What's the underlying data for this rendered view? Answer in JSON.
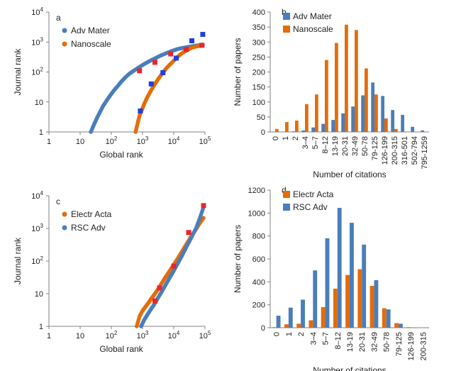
{
  "colors": {
    "blue": "#4a7ebb",
    "orange": "#e46c0a",
    "marker": "#e8262e",
    "marker_blue": "#1f3fe0"
  },
  "chart_data": [
    {
      "panel": "a",
      "type": "scatter",
      "xscale": "log",
      "yscale": "log",
      "xlim": [
        1,
        100000
      ],
      "ylim": [
        1,
        10000
      ],
      "xlabel": "Global rank",
      "ylabel": "Journal rank",
      "xticks": [
        "1",
        "10",
        "10^2",
        "10^3",
        "10^4",
        "10^5"
      ],
      "yticks": [
        "1",
        "10",
        "10^2",
        "10^3",
        "10^4"
      ],
      "legend": "top-left",
      "series": [
        {
          "name": "Adv Mater",
          "color": "#4a7ebb",
          "x": [
            22,
            28,
            35,
            45,
            55,
            70,
            90,
            120,
            160,
            210,
            280,
            380,
            520,
            700,
            950,
            1300,
            1800,
            2500,
            3500,
            5000,
            7000,
            10000,
            14000,
            20000,
            30000,
            45000,
            65000,
            85000
          ],
          "y": [
            1,
            1.8,
            3,
            5,
            7.5,
            11,
            16,
            24,
            34,
            48,
            66,
            88,
            110,
            135,
            165,
            200,
            240,
            285,
            340,
            400,
            460,
            530,
            590,
            640,
            690,
            740,
            780,
            800
          ]
        },
        {
          "name": "Nanoscale",
          "color": "#e46c0a",
          "x": [
            600,
            700,
            800,
            950,
            1150,
            1450,
            1900,
            2500,
            3300,
            4500,
            6000,
            8500,
            12000,
            17000,
            25000,
            38000,
            55000,
            80000
          ],
          "y": [
            1,
            2,
            3.5,
            5.5,
            9,
            15,
            25,
            40,
            62,
            95,
            140,
            200,
            290,
            400,
            520,
            650,
            720,
            760
          ]
        }
      ],
      "markers": [
        {
          "color": "#e8262e",
          "x": [
            800,
            2500,
            8000,
            25000,
            80000
          ],
          "y": [
            110,
            210,
            400,
            560,
            780
          ]
        },
        {
          "color": "#1f3fe0",
          "x": [
            850,
            1900,
            4500,
            12000,
            38000,
            85000
          ],
          "y": [
            5,
            40,
            95,
            290,
            1100,
            1800
          ]
        }
      ]
    },
    {
      "panel": "b",
      "type": "bar",
      "categories": [
        "0",
        "1",
        "2",
        "3–4",
        "5–7",
        "8–12",
        "13-19",
        "20-31",
        "32-49",
        "50-78",
        "79-125",
        "126-199",
        "200-315",
        "316-501",
        "502-794",
        "795-1259"
      ],
      "xlabel": "Number of citations",
      "ylabel": "Number of papers",
      "ylim": [
        0,
        400
      ],
      "yticks": [
        "0",
        "50",
        "100",
        "150",
        "200",
        "250",
        "300",
        "350",
        "400"
      ],
      "legend": "top-left",
      "series": [
        {
          "name": "Adv Mater",
          "color": "#4a7ebb",
          "values": [
            1,
            1,
            2,
            5,
            15,
            27,
            40,
            62,
            85,
            122,
            165,
            120,
            73,
            57,
            17,
            5
          ]
        },
        {
          "name": "Nanoscale",
          "color": "#e46c0a",
          "values": [
            10,
            33,
            38,
            93,
            125,
            240,
            297,
            358,
            340,
            212,
            125,
            45,
            10,
            1,
            0,
            0
          ]
        }
      ]
    },
    {
      "panel": "c",
      "type": "scatter",
      "xscale": "log",
      "yscale": "log",
      "xlim": [
        1,
        100000
      ],
      "ylim": [
        1,
        10000
      ],
      "xlabel": "Global rank",
      "ylabel": "Journal rank",
      "xticks": [
        "1",
        "10",
        "10^2",
        "10^3",
        "10^4",
        "10^5"
      ],
      "yticks": [
        "1",
        "10",
        "10^2",
        "10^3",
        "10^4"
      ],
      "legend": "top-left",
      "series": [
        {
          "name": "Electr Acta",
          "color": "#e46c0a",
          "x": [
            650,
            800,
            1000,
            1250,
            1600,
            2000,
            2500,
            3200,
            4000,
            5200,
            7000,
            9500,
            13000,
            18000,
            25000,
            35000,
            50000,
            70000,
            90000
          ],
          "y": [
            1,
            2,
            3,
            4,
            5.5,
            7.5,
            10,
            14,
            20,
            30,
            46,
            72,
            115,
            190,
            320,
            540,
            900,
            1500,
            2100
          ]
        },
        {
          "name": "RSC Adv",
          "color": "#4a7ebb",
          "x": [
            900,
            1100,
            1400,
            1800,
            2300,
            3000,
            4000,
            5200,
            7000,
            9500,
            13000,
            18000,
            25000,
            35000,
            50000,
            70000,
            90000
          ],
          "y": [
            1,
            1.5,
            2.2,
            3.2,
            4.5,
            7,
            11,
            17,
            28,
            46,
            80,
            140,
            260,
            480,
            950,
            2200,
            4500
          ]
        }
      ],
      "markers": [
        {
          "color": "#e8262e",
          "x": [
            2500,
            3500,
            10000,
            30000,
            90000
          ],
          "y": [
            6,
            15,
            70,
            750,
            5000
          ]
        }
      ]
    },
    {
      "panel": "d",
      "type": "bar",
      "categories": [
        "0",
        "1",
        "2",
        "3–4",
        "5–7",
        "8–12",
        "13-19",
        "20-31",
        "32-49",
        "50-78",
        "79-125",
        "126-199",
        "200-315"
      ],
      "xlabel": "Number of citations",
      "ylabel": "Number of papers",
      "ylim": [
        0,
        1200
      ],
      "yticks": [
        "0",
        "200",
        "400",
        "600",
        "800",
        "1000",
        "1200"
      ],
      "legend": "top-left",
      "series": [
        {
          "name": "Electr Acta",
          "color": "#e46c0a",
          "values": [
            5,
            30,
            35,
            65,
            180,
            340,
            460,
            510,
            365,
            170,
            40,
            5,
            0
          ]
        },
        {
          "name": "RSC Adv",
          "color": "#4a7ebb",
          "values": [
            105,
            175,
            245,
            500,
            780,
            1045,
            915,
            725,
            415,
            160,
            35,
            3,
            1
          ]
        }
      ]
    }
  ]
}
